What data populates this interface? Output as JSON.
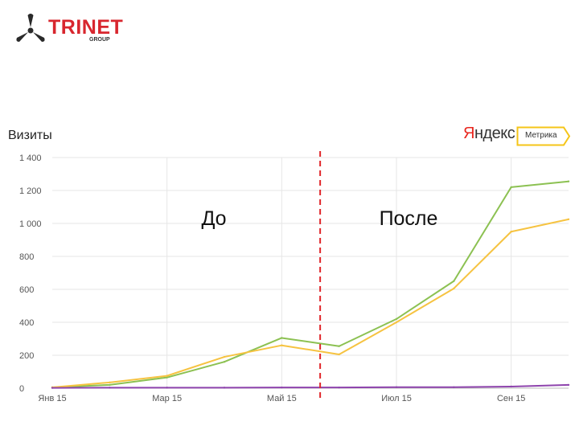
{
  "logo": {
    "name": "TRINET",
    "sub": "GROUP"
  },
  "header": {
    "chart_title": "Визиты",
    "yandex_first": "Я",
    "yandex_rest": "ндекс",
    "metrika": "Метрика"
  },
  "annotations": {
    "before": "До",
    "after": "После"
  },
  "colors": {
    "brand": "#d8262e",
    "green": "#8cc152",
    "yellow": "#f6c341",
    "purple": "#8e44ad",
    "divider": "#e0262a",
    "grid": "#e6e6e6"
  },
  "chart_data": {
    "type": "line",
    "title": "Визиты",
    "xlabel": "",
    "ylabel": "",
    "x": [
      0,
      1,
      2,
      3,
      4,
      5,
      6,
      7,
      8,
      9
    ],
    "x_ticks": [
      {
        "pos": 0,
        "label": "Янв 15"
      },
      {
        "pos": 2,
        "label": "Мар 15"
      },
      {
        "pos": 4,
        "label": "Май 15"
      },
      {
        "pos": 6,
        "label": "Июл 15"
      },
      {
        "pos": 8,
        "label": "Сен 15"
      }
    ],
    "ylim": [
      0,
      1400
    ],
    "y_ticks": [
      0,
      200,
      400,
      600,
      800,
      1000,
      1200,
      1400
    ],
    "y_tick_labels": [
      "0",
      "200",
      "400",
      "600",
      "800",
      "1 000",
      "1 200",
      "1 400"
    ],
    "grid": true,
    "divider_x": 4.67,
    "series": [
      {
        "color": "#8cc152",
        "values": [
          5,
          20,
          65,
          160,
          305,
          255,
          420,
          650,
          1220,
          1255
        ]
      },
      {
        "color": "#f6c341",
        "values": [
          5,
          35,
          75,
          190,
          260,
          205,
          400,
          605,
          950,
          1025
        ]
      },
      {
        "color": "#8e44ad",
        "values": [
          2,
          3,
          3,
          3,
          4,
          4,
          6,
          6,
          10,
          20
        ]
      }
    ]
  }
}
